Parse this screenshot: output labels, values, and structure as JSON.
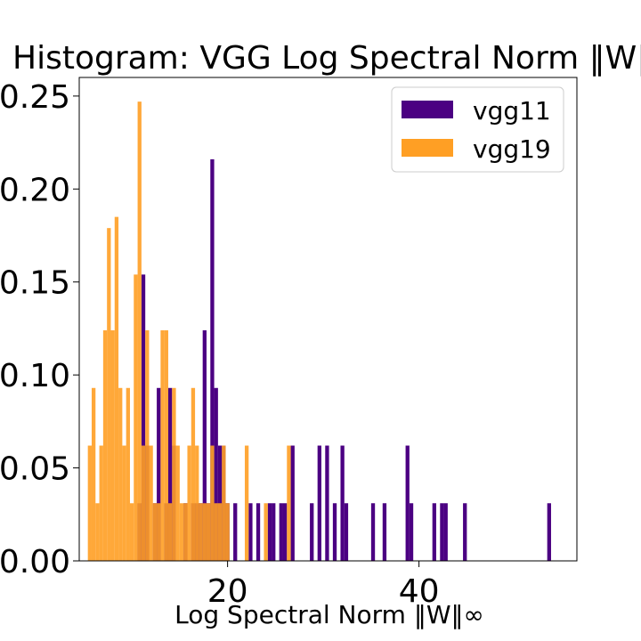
{
  "chart_data": {
    "type": "histogram",
    "title": "Histogram: VGG Log Spectral Norm ‖W‖∞",
    "xlabel": "Log Spectral Norm ‖W‖∞",
    "ylabel": "",
    "xlim": [
      4.5,
      56.5
    ],
    "ylim": [
      0,
      0.26
    ],
    "xticks": [
      "20",
      "40"
    ],
    "xtick_values": [
      20,
      40
    ],
    "yticks": [
      "0.00",
      "0.05",
      "0.10",
      "0.15",
      "0.20",
      "0.25"
    ],
    "ytick_values": [
      0.0,
      0.05,
      0.1,
      0.15,
      0.2,
      0.25
    ],
    "grid": false,
    "legend_position": "upper right",
    "bin_width": 0.4,
    "series": [
      {
        "name": "vgg11",
        "color": "#4b0082",
        "bins": [
          [
            10.6,
            0.031
          ],
          [
            11.0,
            0.154
          ],
          [
            11.4,
            0.062
          ],
          [
            12.2,
            0.031
          ],
          [
            12.6,
            0.093
          ],
          [
            13.4,
            0.031
          ],
          [
            13.8,
            0.093
          ],
          [
            14.2,
            0.062
          ],
          [
            15.4,
            0.031
          ],
          [
            16.2,
            0.031
          ],
          [
            16.6,
            0.031
          ],
          [
            17.0,
            0.031
          ],
          [
            17.4,
            0.124
          ],
          [
            17.8,
            0.031
          ],
          [
            18.2,
            0.216
          ],
          [
            18.6,
            0.093
          ],
          [
            19.0,
            0.062
          ],
          [
            19.4,
            0.062
          ],
          [
            19.8,
            0.031
          ],
          [
            20.6,
            0.031
          ],
          [
            22.2,
            0.031
          ],
          [
            23.0,
            0.031
          ],
          [
            24.2,
            0.031
          ],
          [
            24.6,
            0.031
          ],
          [
            25.4,
            0.031
          ],
          [
            25.8,
            0.031
          ],
          [
            26.6,
            0.062
          ],
          [
            28.6,
            0.031
          ],
          [
            29.4,
            0.062
          ],
          [
            30.2,
            0.062
          ],
          [
            31.0,
            0.031
          ],
          [
            31.8,
            0.062
          ],
          [
            32.2,
            0.031
          ],
          [
            35.0,
            0.031
          ],
          [
            36.2,
            0.031
          ],
          [
            38.6,
            0.062
          ],
          [
            39.0,
            0.031
          ],
          [
            41.4,
            0.031
          ],
          [
            42.2,
            0.031
          ],
          [
            42.6,
            0.031
          ],
          [
            44.6,
            0.031
          ],
          [
            53.4,
            0.031
          ]
        ]
      },
      {
        "name": "vgg19",
        "color": "#ff9f24",
        "bins": [
          [
            5.4,
            0.062
          ],
          [
            5.8,
            0.093
          ],
          [
            6.2,
            0.031
          ],
          [
            6.6,
            0.062
          ],
          [
            7.0,
            0.124
          ],
          [
            7.4,
            0.179
          ],
          [
            7.8,
            0.124
          ],
          [
            8.2,
            0.185
          ],
          [
            8.6,
            0.093
          ],
          [
            9.0,
            0.062
          ],
          [
            9.4,
            0.093
          ],
          [
            9.8,
            0.031
          ],
          [
            10.2,
            0.154
          ],
          [
            10.6,
            0.247
          ],
          [
            11.0,
            0.062
          ],
          [
            11.4,
            0.124
          ],
          [
            11.8,
            0.062
          ],
          [
            12.2,
            0.031
          ],
          [
            12.6,
            0.031
          ],
          [
            13.0,
            0.124
          ],
          [
            13.4,
            0.124
          ],
          [
            13.8,
            0.031
          ],
          [
            14.2,
            0.093
          ],
          [
            14.6,
            0.062
          ],
          [
            15.0,
            0.031
          ],
          [
            15.4,
            0.031
          ],
          [
            15.8,
            0.062
          ],
          [
            16.2,
            0.093
          ],
          [
            16.6,
            0.062
          ],
          [
            17.0,
            0.031
          ],
          [
            17.4,
            0.031
          ],
          [
            17.8,
            0.031
          ],
          [
            18.2,
            0.062
          ],
          [
            18.6,
            0.031
          ],
          [
            19.0,
            0.031
          ],
          [
            19.4,
            0.062
          ],
          [
            19.8,
            0.031
          ],
          [
            21.8,
            0.062
          ],
          [
            23.8,
            0.031
          ],
          [
            26.2,
            0.062
          ]
        ]
      }
    ]
  }
}
